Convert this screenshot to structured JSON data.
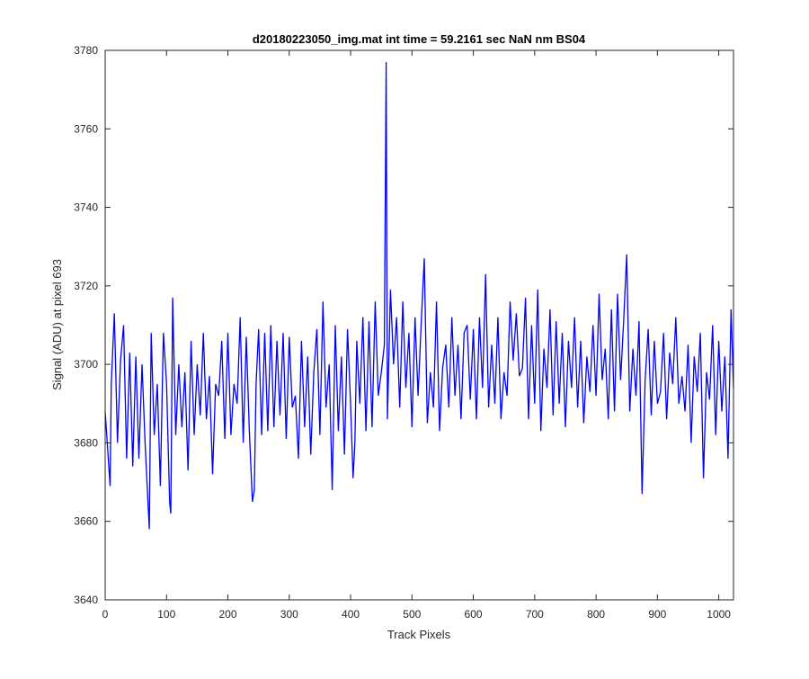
{
  "chart_data": {
    "type": "line",
    "title": "d20180223050_img.mat int time = 59.2161 sec  NaN nm BS04",
    "xlabel": "Track Pixels",
    "ylabel": "Signal (ADU) at pixel 693",
    "xlim": [
      0,
      1024
    ],
    "ylim": [
      3640,
      3780
    ],
    "x_ticks": [
      "0",
      "100",
      "200",
      "300",
      "400",
      "500",
      "600",
      "700",
      "800",
      "900",
      "1000"
    ],
    "y_ticks": [
      "3640",
      "3660",
      "3680",
      "3700",
      "3720",
      "3740",
      "3760",
      "3780"
    ],
    "x_tick_values": [
      0,
      100,
      200,
      300,
      400,
      500,
      600,
      700,
      800,
      900,
      1000
    ],
    "y_tick_values": [
      3640,
      3660,
      3680,
      3700,
      3720,
      3740,
      3760,
      3780
    ],
    "grid": false,
    "box": true,
    "series": [
      {
        "color": "#0000ff",
        "x": [
          0,
          8,
          10,
          15,
          20,
          25,
          30,
          35,
          40,
          45,
          50,
          55,
          60,
          65,
          70,
          72,
          75,
          80,
          85,
          90,
          95,
          100,
          105,
          107,
          110,
          115,
          120,
          125,
          130,
          135,
          140,
          145,
          150,
          155,
          160,
          165,
          170,
          175,
          180,
          185,
          190,
          195,
          200,
          205,
          210,
          215,
          220,
          225,
          230,
          235,
          240,
          243,
          246,
          250,
          255,
          260,
          265,
          270,
          275,
          280,
          285,
          290,
          295,
          300,
          305,
          310,
          315,
          320,
          325,
          330,
          335,
          340,
          345,
          350,
          355,
          360,
          365,
          370,
          375,
          380,
          385,
          390,
          395,
          400,
          404,
          407,
          410,
          415,
          420,
          425,
          430,
          435,
          440,
          445,
          450,
          455,
          458,
          460,
          465,
          470,
          475,
          480,
          485,
          490,
          495,
          500,
          505,
          510,
          515,
          520,
          525,
          530,
          535,
          540,
          545,
          550,
          555,
          560,
          565,
          570,
          575,
          580,
          585,
          590,
          595,
          600,
          605,
          610,
          615,
          620,
          625,
          630,
          635,
          640,
          645,
          650,
          655,
          660,
          665,
          670,
          675,
          680,
          685,
          690,
          695,
          700,
          705,
          710,
          715,
          720,
          725,
          730,
          735,
          740,
          745,
          750,
          755,
          760,
          765,
          770,
          775,
          780,
          785,
          790,
          795,
          800,
          805,
          810,
          815,
          820,
          825,
          830,
          835,
          840,
          845,
          850,
          855,
          860,
          865,
          870,
          875,
          880,
          885,
          890,
          895,
          900,
          905,
          910,
          915,
          920,
          925,
          930,
          935,
          940,
          945,
          950,
          955,
          960,
          965,
          970,
          975,
          980,
          985,
          990,
          995,
          1000,
          1005,
          1010,
          1015,
          1020,
          1024
        ],
        "y": [
          3688,
          3669,
          3695,
          3713,
          3680,
          3701,
          3710,
          3676,
          3703,
          3674,
          3702,
          3676,
          3700,
          3680,
          3664,
          3658,
          3708,
          3682,
          3695,
          3669,
          3708,
          3695,
          3665,
          3662,
          3717,
          3682,
          3700,
          3684,
          3698,
          3673,
          3706,
          3682,
          3700,
          3687,
          3708,
          3686,
          3697,
          3672,
          3695,
          3692,
          3706,
          3681,
          3708,
          3682,
          3695,
          3690,
          3712,
          3680,
          3707,
          3683,
          3665,
          3668,
          3695,
          3709,
          3682,
          3708,
          3683,
          3710,
          3684,
          3706,
          3687,
          3708,
          3681,
          3707,
          3689,
          3692,
          3676,
          3706,
          3684,
          3702,
          3677,
          3698,
          3709,
          3682,
          3716,
          3689,
          3700,
          3668,
          3710,
          3683,
          3702,
          3677,
          3709,
          3690,
          3671,
          3680,
          3706,
          3690,
          3712,
          3683,
          3711,
          3684,
          3716,
          3692,
          3698,
          3705,
          3777,
          3686,
          3719,
          3700,
          3712,
          3689,
          3716,
          3694,
          3708,
          3684,
          3712,
          3692,
          3710,
          3727,
          3685,
          3698,
          3689,
          3716,
          3683,
          3699,
          3705,
          3689,
          3712,
          3692,
          3705,
          3686,
          3708,
          3710,
          3691,
          3709,
          3686,
          3712,
          3694,
          3723,
          3689,
          3705,
          3690,
          3712,
          3686,
          3698,
          3692,
          3716,
          3701,
          3713,
          3697,
          3699,
          3717,
          3686,
          3710,
          3690,
          3719,
          3683,
          3704,
          3694,
          3714,
          3687,
          3711,
          3690,
          3708,
          3684,
          3706,
          3694,
          3712,
          3689,
          3706,
          3685,
          3702,
          3693,
          3710,
          3692,
          3718,
          3696,
          3704,
          3686,
          3714,
          3688,
          3718,
          3696,
          3711,
          3728,
          3688,
          3704,
          3692,
          3711,
          3667,
          3696,
          3709,
          3687,
          3706,
          3690,
          3693,
          3708,
          3686,
          3703,
          3695,
          3712,
          3690,
          3697,
          3688,
          3705,
          3680,
          3702,
          3693,
          3708,
          3671,
          3698,
          3691,
          3710,
          3682,
          3706,
          3688,
          3702,
          3676,
          3714,
          3694
        ]
      }
    ]
  }
}
